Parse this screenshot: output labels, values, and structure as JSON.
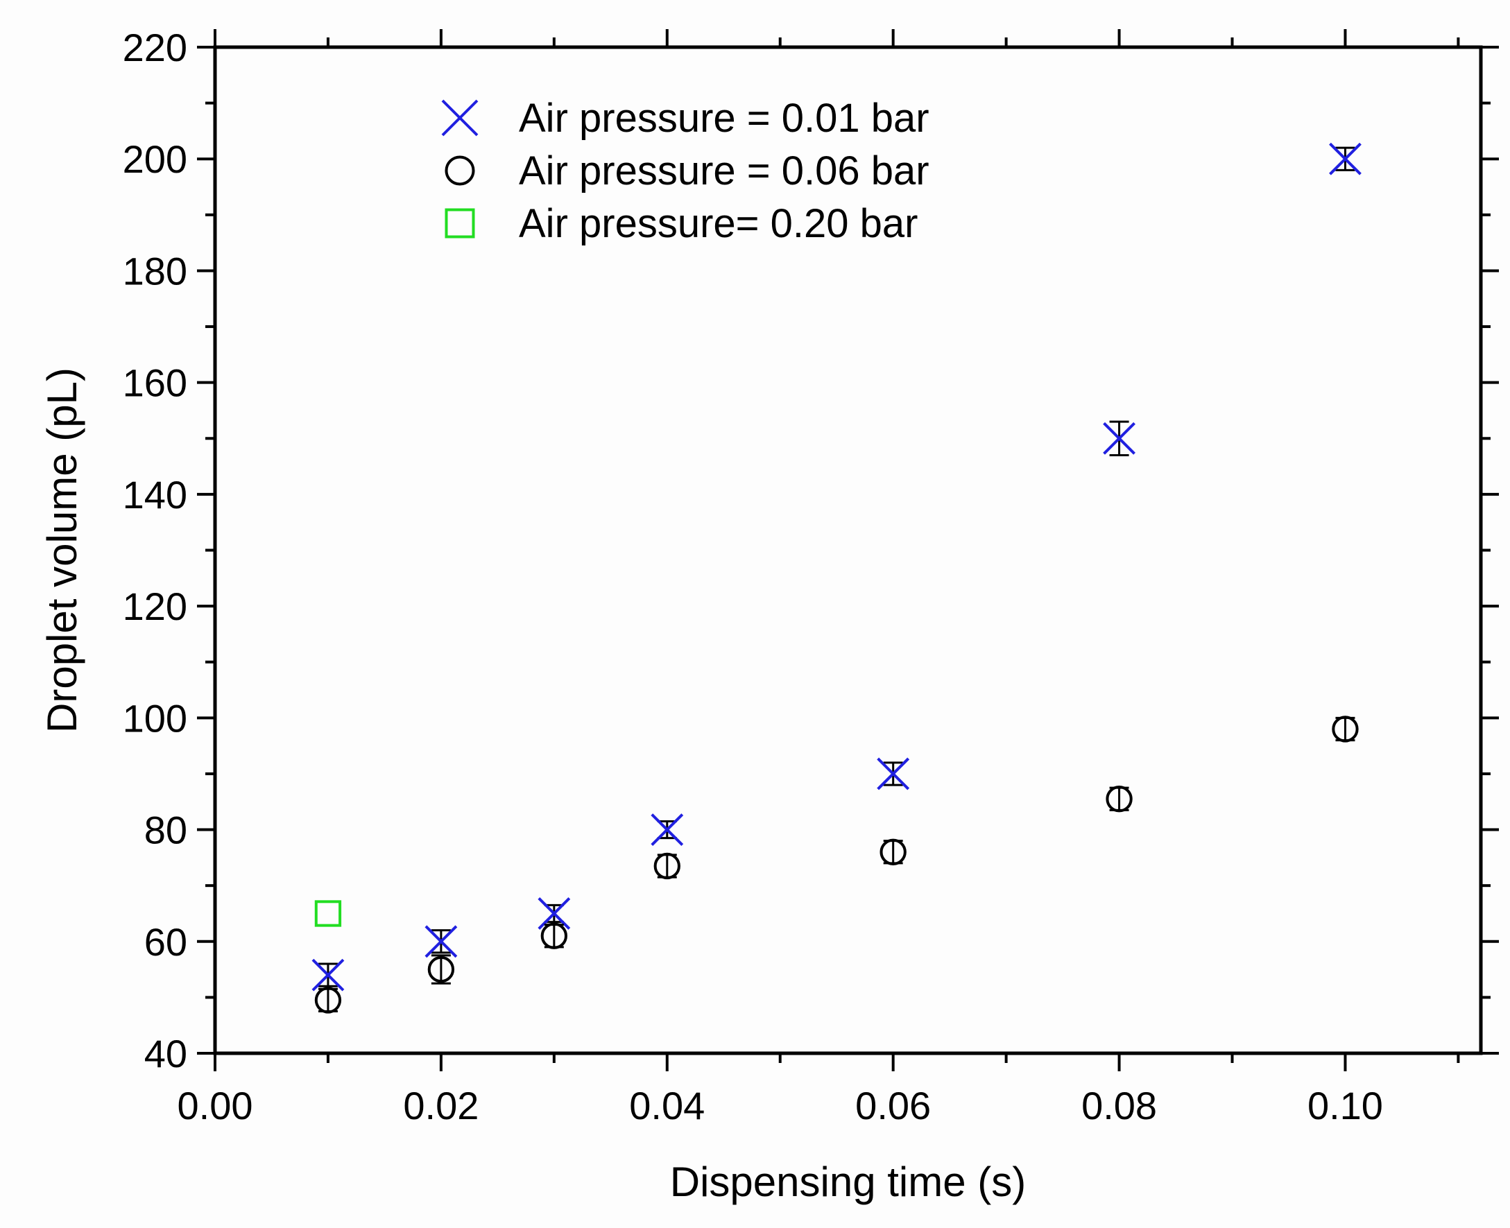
{
  "chart_data": {
    "type": "scatter",
    "title": "",
    "xlabel": "Dispensing time (s)",
    "ylabel": "Droplet volume (pL)",
    "xlim": [
      0.0,
      0.112
    ],
    "ylim": [
      40,
      220
    ],
    "xticks": [
      0.0,
      0.02,
      0.04,
      0.06,
      0.08,
      0.1
    ],
    "xtick_labels": [
      "0.00",
      "0.02",
      "0.04",
      "0.06",
      "0.08",
      "0.10"
    ],
    "xminor": [
      0.01,
      0.03,
      0.05,
      0.07,
      0.09,
      0.11
    ],
    "yticks": [
      40,
      60,
      80,
      100,
      120,
      140,
      160,
      180,
      200,
      220
    ],
    "ytick_labels": [
      "40",
      "60",
      "80",
      "100",
      "120",
      "140",
      "160",
      "180",
      "200",
      "220"
    ],
    "yminor": [
      50,
      70,
      90,
      110,
      130,
      150,
      170,
      190,
      210
    ],
    "grid": false,
    "legend_position": "top-left",
    "series": [
      {
        "name": "Air pressure = 0.01 bar",
        "marker": "x",
        "color": "#2020e0",
        "points": [
          {
            "x": 0.01,
            "y": 54,
            "err": 2
          },
          {
            "x": 0.02,
            "y": 60,
            "err": 2
          },
          {
            "x": 0.03,
            "y": 65,
            "err": 1.5
          },
          {
            "x": 0.04,
            "y": 80,
            "err": 1.5
          },
          {
            "x": 0.06,
            "y": 90,
            "err": 2
          },
          {
            "x": 0.08,
            "y": 150,
            "err": 3
          },
          {
            "x": 0.1,
            "y": 200,
            "err": 2
          }
        ]
      },
      {
        "name": "Air pressure = 0.06 bar",
        "marker": "circle",
        "color": "#000000",
        "points": [
          {
            "x": 0.01,
            "y": 49.5,
            "err": 2
          },
          {
            "x": 0.02,
            "y": 55,
            "err": 2.5
          },
          {
            "x": 0.03,
            "y": 61,
            "err": 2
          },
          {
            "x": 0.04,
            "y": 73.5,
            "err": 2
          },
          {
            "x": 0.06,
            "y": 76,
            "err": 2
          },
          {
            "x": 0.08,
            "y": 85.5,
            "err": 2
          },
          {
            "x": 0.1,
            "y": 98,
            "err": 2
          }
        ]
      },
      {
        "name": "Air pressure= 0.20 bar",
        "marker": "square",
        "color": "#22dd22",
        "points": [
          {
            "x": 0.01,
            "y": 65,
            "err": 0
          }
        ]
      }
    ]
  }
}
